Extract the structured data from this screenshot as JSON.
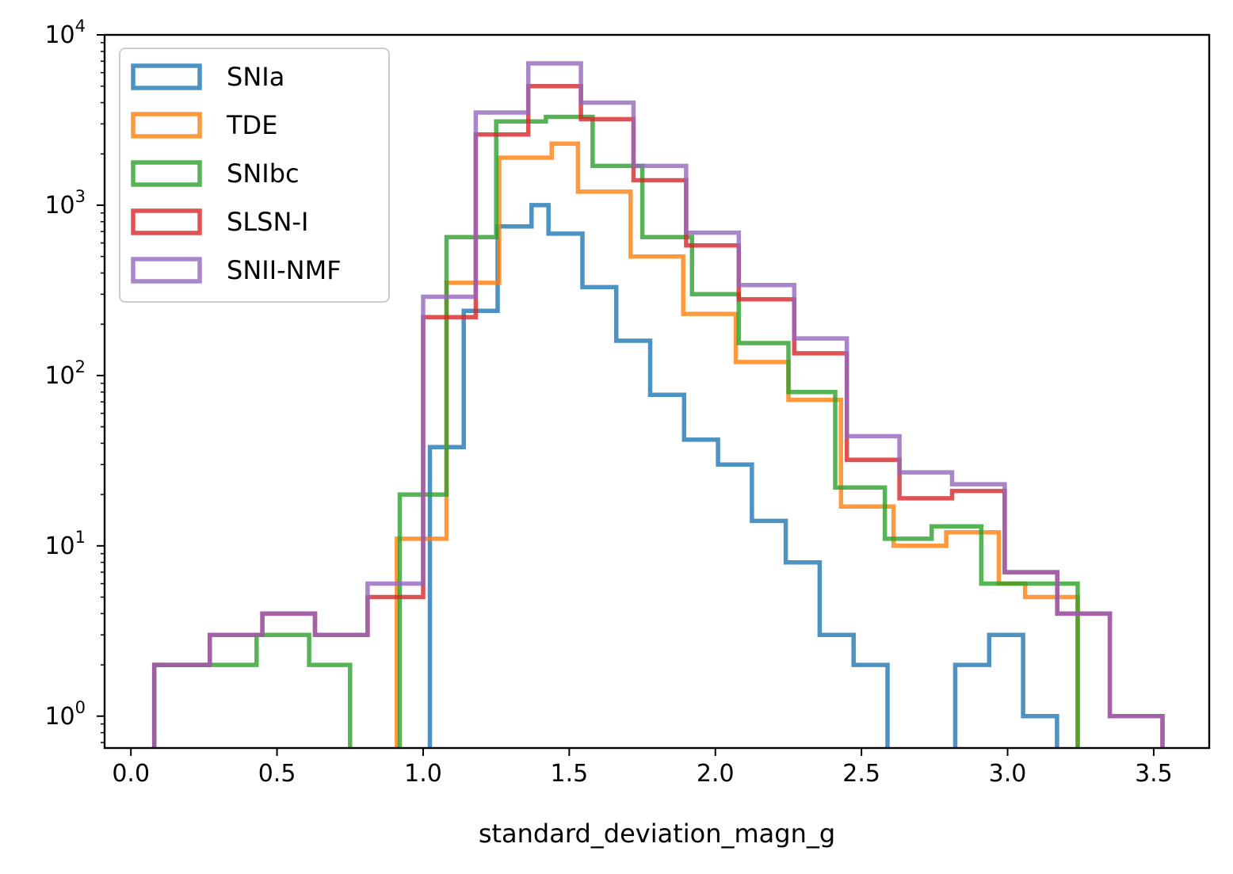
{
  "chart_data": {
    "type": "histogram",
    "title": "",
    "xlabel": "standard_deviation_magn_g",
    "ylabel": "",
    "xlim": [
      -0.09,
      3.69
    ],
    "ylim": [
      0.65,
      10000
    ],
    "yscale": "log",
    "x_ticks": [
      "0.0",
      "0.5",
      "1.0",
      "1.5",
      "2.0",
      "2.5",
      "3.0",
      "3.5"
    ],
    "x_tick_values": [
      0,
      0.5,
      1.0,
      1.5,
      2.0,
      2.5,
      3.0,
      3.5
    ],
    "y_ticks": [
      {
        "value": 1,
        "base": "10",
        "exp": "0"
      },
      {
        "value": 10,
        "base": "10",
        "exp": "1"
      },
      {
        "value": 100,
        "base": "10",
        "exp": "2"
      },
      {
        "value": 1000,
        "base": "10",
        "exp": "3"
      },
      {
        "value": 10000,
        "base": "10",
        "exp": "4"
      }
    ],
    "legend_location": "upper left",
    "series": [
      {
        "name": "SNIa",
        "color": "#1f77b4",
        "edges": [
          1.023,
          1.081,
          1.139,
          1.197,
          1.255,
          1.313,
          1.371,
          1.429,
          1.487,
          1.545,
          1.603,
          1.661,
          1.719,
          1.777,
          1.835,
          1.893,
          1.951,
          2.009,
          2.067,
          2.125,
          2.183,
          2.241,
          2.299,
          2.357,
          2.415,
          2.473,
          2.531,
          2.589,
          2.647,
          2.705,
          2.763,
          2.821,
          2.879,
          2.937,
          2.995,
          3.053,
          3.111,
          3.169
        ],
        "counts": [
          38,
          38,
          240,
          240,
          750,
          750,
          1000,
          680,
          680,
          330,
          330,
          160,
          160,
          77,
          77,
          42,
          42,
          30,
          30,
          14,
          14,
          8,
          8,
          3,
          3,
          2,
          2,
          0,
          0,
          0,
          0,
          2,
          2,
          3,
          3,
          1,
          1
        ]
      },
      {
        "name": "TDE",
        "color": "#ff7f0e",
        "edges": [
          0.91,
          0.99,
          1.08,
          1.17,
          1.26,
          1.35,
          1.44,
          1.53,
          1.62,
          1.71,
          1.8,
          1.89,
          1.98,
          2.07,
          2.16,
          2.25,
          2.34,
          2.43,
          2.52,
          2.61,
          2.7,
          2.79,
          2.88,
          2.97,
          3.06,
          3.15,
          3.24
        ],
        "counts": [
          11,
          11,
          350,
          350,
          1900,
          1900,
          2300,
          1200,
          1200,
          500,
          500,
          230,
          230,
          120,
          120,
          72,
          72,
          17,
          17,
          10,
          10,
          12,
          12,
          6,
          5,
          5
        ]
      },
      {
        "name": "SNIbc",
        "color": "#2ca02c",
        "edges": [
          0.08,
          0.26,
          0.43,
          0.61,
          0.75,
          0.92,
          1.08,
          1.17,
          1.25,
          1.34,
          1.42,
          1.5,
          1.58,
          1.67,
          1.75,
          1.83,
          1.92,
          2.0,
          2.08,
          2.16,
          2.25,
          2.33,
          2.41,
          2.5,
          2.58,
          2.66,
          2.74,
          2.83,
          2.91,
          2.99,
          3.07,
          3.16,
          3.24
        ],
        "counts": [
          2,
          2,
          3,
          2,
          0,
          20,
          650,
          650,
          3100,
          3100,
          3300,
          3300,
          1700,
          1700,
          650,
          650,
          300,
          300,
          155,
          155,
          80,
          80,
          22,
          22,
          11,
          11,
          13,
          13,
          6,
          6,
          6,
          6
        ]
      },
      {
        "name": "SLSN-I",
        "color": "#d62728",
        "edges": [
          0.08,
          0.27,
          0.45,
          0.63,
          0.81,
          1.0,
          1.18,
          1.36,
          1.54,
          1.72,
          1.9,
          2.08,
          2.27,
          2.45,
          2.63,
          2.81,
          2.99,
          3.17,
          3.35,
          3.53
        ],
        "counts": [
          2,
          3,
          4,
          3,
          5,
          220,
          2600,
          5000,
          3200,
          1400,
          580,
          280,
          135,
          32,
          19,
          21,
          7,
          4,
          1
        ]
      },
      {
        "name": "SNII-NMF",
        "color": "#9467bd",
        "edges": [
          0.08,
          0.27,
          0.45,
          0.63,
          0.81,
          1.0,
          1.18,
          1.36,
          1.54,
          1.72,
          1.9,
          2.08,
          2.27,
          2.45,
          2.63,
          2.81,
          2.99,
          3.17,
          3.35,
          3.53
        ],
        "counts": [
          2,
          3,
          4,
          3,
          6,
          290,
          3500,
          6800,
          4000,
          1700,
          690,
          340,
          165,
          44,
          27,
          23,
          7,
          4,
          1
        ]
      }
    ]
  }
}
